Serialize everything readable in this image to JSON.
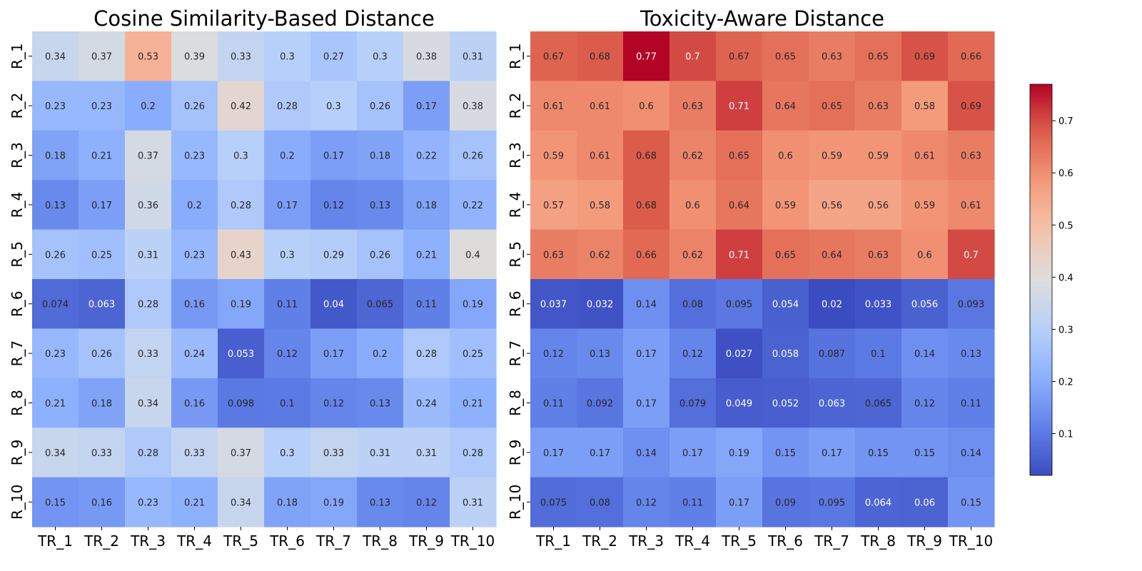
{
  "chart_data": [
    {
      "type": "heatmap",
      "title": "Cosine Similarity-Based Distance",
      "xlabel": "",
      "ylabel": "",
      "x_categories": [
        "TR_1",
        "TR_2",
        "TR_3",
        "TR_4",
        "TR_5",
        "TR_6",
        "TR_7",
        "TR_8",
        "TR_9",
        "TR_10"
      ],
      "y_categories": [
        "R_1",
        "R_2",
        "R_3",
        "R_4",
        "R_5",
        "R_6",
        "R_7",
        "R_8",
        "R_9",
        "R_10"
      ],
      "values": [
        [
          0.34,
          0.37,
          0.53,
          0.39,
          0.33,
          0.3,
          0.27,
          0.3,
          0.38,
          0.31
        ],
        [
          0.23,
          0.23,
          0.2,
          0.26,
          0.42,
          0.28,
          0.3,
          0.26,
          0.17,
          0.38
        ],
        [
          0.18,
          0.21,
          0.37,
          0.23,
          0.3,
          0.2,
          0.17,
          0.18,
          0.22,
          0.26
        ],
        [
          0.13,
          0.17,
          0.36,
          0.2,
          0.28,
          0.17,
          0.12,
          0.13,
          0.18,
          0.22
        ],
        [
          0.26,
          0.25,
          0.31,
          0.23,
          0.43,
          0.3,
          0.29,
          0.26,
          0.21,
          0.4
        ],
        [
          0.074,
          0.063,
          0.28,
          0.16,
          0.19,
          0.11,
          0.04,
          0.065,
          0.11,
          0.19
        ],
        [
          0.23,
          0.26,
          0.33,
          0.24,
          0.053,
          0.12,
          0.17,
          0.2,
          0.28,
          0.25
        ],
        [
          0.21,
          0.18,
          0.34,
          0.16,
          0.098,
          0.1,
          0.12,
          0.13,
          0.24,
          0.21
        ],
        [
          0.34,
          0.33,
          0.28,
          0.33,
          0.37,
          0.3,
          0.33,
          0.31,
          0.31,
          0.28
        ],
        [
          0.15,
          0.16,
          0.23,
          0.21,
          0.34,
          0.18,
          0.19,
          0.13,
          0.12,
          0.31
        ]
      ],
      "vmin": 0.02,
      "vmax": 0.77,
      "colormap": "coolwarm",
      "annotated": true
    },
    {
      "type": "heatmap",
      "title": "Toxicity-Aware Distance",
      "xlabel": "",
      "ylabel": "",
      "x_categories": [
        "TR_1",
        "TR_2",
        "TR_3",
        "TR_4",
        "TR_5",
        "TR_6",
        "TR_7",
        "TR_8",
        "TR_9",
        "TR_10"
      ],
      "y_categories": [
        "R_1",
        "R_2",
        "R_3",
        "R_4",
        "R_5",
        "R_6",
        "R_7",
        "R_8",
        "R_9",
        "R_10"
      ],
      "values": [
        [
          0.67,
          0.68,
          0.77,
          0.7,
          0.67,
          0.65,
          0.63,
          0.65,
          0.69,
          0.66
        ],
        [
          0.61,
          0.61,
          0.6,
          0.63,
          0.71,
          0.64,
          0.65,
          0.63,
          0.58,
          0.69
        ],
        [
          0.59,
          0.61,
          0.68,
          0.62,
          0.65,
          0.6,
          0.59,
          0.59,
          0.61,
          0.63
        ],
        [
          0.57,
          0.58,
          0.68,
          0.6,
          0.64,
          0.59,
          0.56,
          0.56,
          0.59,
          0.61
        ],
        [
          0.63,
          0.62,
          0.66,
          0.62,
          0.71,
          0.65,
          0.64,
          0.63,
          0.6,
          0.7
        ],
        [
          0.037,
          0.032,
          0.14,
          0.08,
          0.095,
          0.054,
          0.02,
          0.033,
          0.056,
          0.093
        ],
        [
          0.12,
          0.13,
          0.17,
          0.12,
          0.027,
          0.058,
          0.087,
          0.1,
          0.14,
          0.13
        ],
        [
          0.11,
          0.092,
          0.17,
          0.079,
          0.049,
          0.052,
          0.063,
          0.065,
          0.12,
          0.11
        ],
        [
          0.17,
          0.17,
          0.14,
          0.17,
          0.19,
          0.15,
          0.17,
          0.15,
          0.15,
          0.14
        ],
        [
          0.075,
          0.08,
          0.12,
          0.11,
          0.17,
          0.09,
          0.095,
          0.064,
          0.06,
          0.15
        ]
      ],
      "vmin": 0.02,
      "vmax": 0.77,
      "colormap": "coolwarm",
      "annotated": true
    }
  ],
  "colorbar": {
    "ticks": [
      0.1,
      0.2,
      0.3,
      0.4,
      0.5,
      0.6,
      0.7
    ],
    "tick_labels": [
      "0.1",
      "0.2",
      "0.3",
      "0.4",
      "0.5",
      "0.6",
      "0.7"
    ],
    "range": [
      0.02,
      0.77
    ],
    "colormap": "coolwarm"
  }
}
